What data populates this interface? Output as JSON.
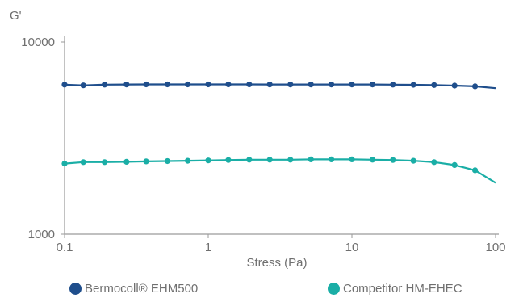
{
  "chart_data": {
    "type": "line",
    "ylabel": "G'",
    "xlabel": "Stress (Pa)",
    "x_scale": "log",
    "y_scale": "log",
    "xlim": [
      0.1,
      100
    ],
    "ylim": [
      1000,
      10000
    ],
    "x_ticks": [
      0.1,
      1,
      10,
      100
    ],
    "x_tick_labels": [
      "0.1",
      "1",
      "10",
      "100"
    ],
    "y_ticks": [
      1000,
      10000
    ],
    "y_tick_labels": [
      "1000",
      "10000"
    ],
    "grid": false,
    "legend_position": "bottom",
    "series": [
      {
        "name": "Bermocoll® EHM500",
        "color": "#1f4e8c",
        "x": [
          0.1,
          0.135,
          0.19,
          0.27,
          0.37,
          0.52,
          0.72,
          1.0,
          1.38,
          1.93,
          2.68,
          3.73,
          5.18,
          7.2,
          10.0,
          13.9,
          19.3,
          26.8,
          37.3,
          51.8,
          72.0
        ],
        "y": [
          6000,
          5950,
          6000,
          6010,
          6020,
          6020,
          6020,
          6020,
          6020,
          6020,
          6010,
          6010,
          6010,
          6010,
          6010,
          6010,
          6000,
          5990,
          5970,
          5930,
          5880
        ],
        "curve_end": {
          "x": 100,
          "y": 5750
        }
      },
      {
        "name": "Competitor HM-EHEC",
        "color": "#1aaea6",
        "x": [
          0.1,
          0.135,
          0.19,
          0.27,
          0.37,
          0.52,
          0.72,
          1.0,
          1.38,
          1.93,
          2.68,
          3.73,
          5.18,
          7.2,
          10.0,
          13.9,
          19.3,
          26.8,
          37.3,
          51.8,
          72.0
        ],
        "y": [
          2330,
          2370,
          2370,
          2380,
          2390,
          2400,
          2410,
          2420,
          2430,
          2440,
          2440,
          2440,
          2450,
          2450,
          2450,
          2440,
          2430,
          2410,
          2370,
          2290,
          2150
        ],
        "curve_end": {
          "x": 100,
          "y": 1850
        }
      }
    ]
  }
}
